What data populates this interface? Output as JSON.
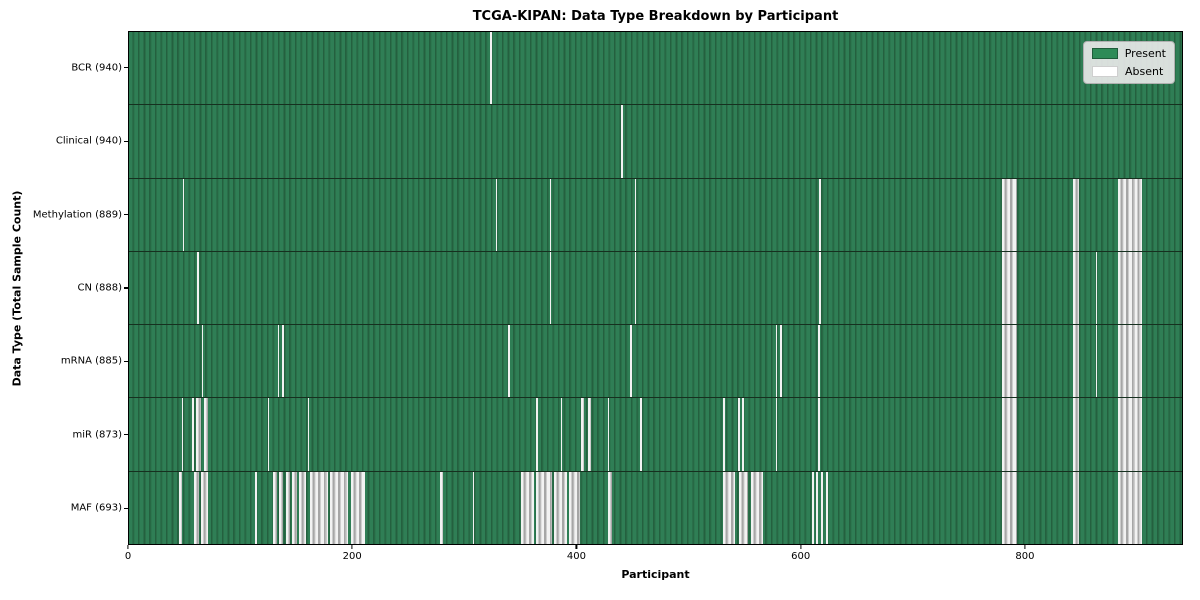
{
  "chart_data": {
    "type": "heatmap",
    "title": "TCGA-KIPAN: Data Type Breakdown by Participant",
    "xlabel": "Participant",
    "ylabel": "Data Type (Total Sample Count)",
    "x_ticks": [
      0,
      200,
      400,
      600,
      800
    ],
    "xlim": [
      0,
      941
    ],
    "grid": false,
    "legend_position": "upper right",
    "legend": [
      {
        "label": "Present",
        "color": "#2E8B57"
      },
      {
        "label": "Absent",
        "color": "#FFFFFF"
      }
    ],
    "colors": {
      "present_fill": "#2E8B57",
      "present_edge": "#1F5C3A",
      "absent_fill": "#FFFFFF",
      "absent_edge": "#A6A6A6",
      "row_separator": "#16301F"
    },
    "rows": [
      {
        "data_type": "BCR",
        "present_count": 940,
        "label": "BCR (940)",
        "absent_ranges": [
          [
            323,
            324
          ]
        ]
      },
      {
        "data_type": "Clinical",
        "present_count": 940,
        "label": "Clinical (940)",
        "absent_ranges": [
          [
            440,
            441
          ]
        ]
      },
      {
        "data_type": "Methylation",
        "present_count": 889,
        "label": "Methylation (889)",
        "absent_ranges": [
          [
            48,
            49
          ],
          [
            328,
            329
          ],
          [
            376,
            377
          ],
          [
            452,
            453
          ],
          [
            617,
            618
          ],
          [
            780,
            794
          ],
          [
            844,
            849
          ],
          [
            884,
            905
          ]
        ]
      },
      {
        "data_type": "CN",
        "present_count": 888,
        "label": "CN (888)",
        "absent_ranges": [
          [
            61,
            62
          ],
          [
            376,
            377
          ],
          [
            452,
            453
          ],
          [
            617,
            618
          ],
          [
            780,
            794
          ],
          [
            844,
            849
          ],
          [
            864,
            865
          ],
          [
            884,
            905
          ]
        ]
      },
      {
        "data_type": "mRNA",
        "present_count": 885,
        "label": "mRNA (885)",
        "absent_ranges": [
          [
            65,
            66
          ],
          [
            133,
            134
          ],
          [
            137,
            138
          ],
          [
            339,
            340
          ],
          [
            448,
            449
          ],
          [
            578,
            579
          ],
          [
            582,
            583
          ],
          [
            616,
            617
          ],
          [
            780,
            794
          ],
          [
            844,
            849
          ],
          [
            864,
            865
          ],
          [
            884,
            905
          ]
        ]
      },
      {
        "data_type": "miR",
        "present_count": 873,
        "label": "miR (873)",
        "absent_ranges": [
          [
            47,
            48
          ],
          [
            56,
            58
          ],
          [
            60,
            64
          ],
          [
            67,
            71
          ],
          [
            124,
            125
          ],
          [
            160,
            161
          ],
          [
            364,
            365
          ],
          [
            386,
            387
          ],
          [
            404,
            407
          ],
          [
            410,
            413
          ],
          [
            428,
            429
          ],
          [
            457,
            458
          ],
          [
            531,
            532
          ],
          [
            544,
            546
          ],
          [
            548,
            549
          ],
          [
            578,
            579
          ],
          [
            616,
            617
          ],
          [
            780,
            794
          ],
          [
            844,
            849
          ],
          [
            884,
            905
          ]
        ]
      },
      {
        "data_type": "MAF",
        "present_count": 693,
        "label": "MAF (693)",
        "absent_ranges": [
          [
            45,
            47
          ],
          [
            58,
            63
          ],
          [
            64,
            71
          ],
          [
            113,
            114
          ],
          [
            129,
            132
          ],
          [
            134,
            138
          ],
          [
            140,
            144
          ],
          [
            146,
            150
          ],
          [
            152,
            158
          ],
          [
            162,
            178
          ],
          [
            180,
            196
          ],
          [
            198,
            211
          ],
          [
            278,
            281
          ],
          [
            307,
            308
          ],
          [
            350,
            362
          ],
          [
            364,
            378
          ],
          [
            380,
            391
          ],
          [
            393,
            403
          ],
          [
            428,
            432
          ],
          [
            531,
            542
          ],
          [
            545,
            553
          ],
          [
            556,
            567
          ],
          [
            610,
            612
          ],
          [
            614,
            616
          ],
          [
            618,
            620
          ],
          [
            623,
            625
          ],
          [
            780,
            794
          ],
          [
            844,
            849
          ],
          [
            884,
            905
          ]
        ]
      }
    ]
  }
}
